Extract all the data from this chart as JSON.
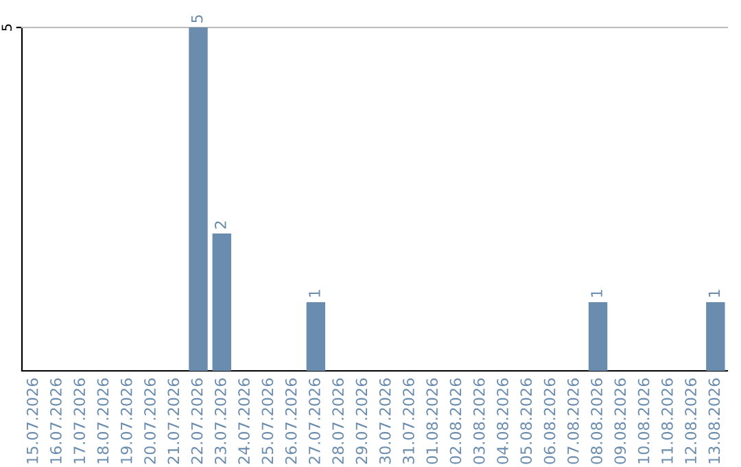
{
  "chart_data": {
    "type": "bar",
    "categories": [
      "15.07.2026",
      "16.07.2026",
      "17.07.2026",
      "18.07.2026",
      "19.07.2026",
      "20.07.2026",
      "21.07.2026",
      "22.07.2026",
      "23.07.2026",
      "24.07.2026",
      "25.07.2026",
      "26.07.2026",
      "27.07.2026",
      "28.07.2026",
      "29.07.2026",
      "30.07.2026",
      "31.07.2026",
      "01.08.2026",
      "02.08.2026",
      "03.08.2026",
      "04.08.2026",
      "05.08.2026",
      "06.08.2026",
      "07.08.2026",
      "08.08.2026",
      "09.08.2026",
      "10.08.2026",
      "11.08.2026",
      "12.08.2026",
      "13.08.2026"
    ],
    "values": [
      null,
      null,
      null,
      null,
      null,
      null,
      null,
      5,
      2,
      null,
      null,
      null,
      1,
      null,
      null,
      null,
      null,
      null,
      null,
      null,
      null,
      null,
      null,
      null,
      1,
      null,
      null,
      null,
      null,
      1
    ],
    "color": "#6a8caf",
    "ylim": [
      0,
      5
    ],
    "yticks": [
      5
    ],
    "data_labels": true
  }
}
